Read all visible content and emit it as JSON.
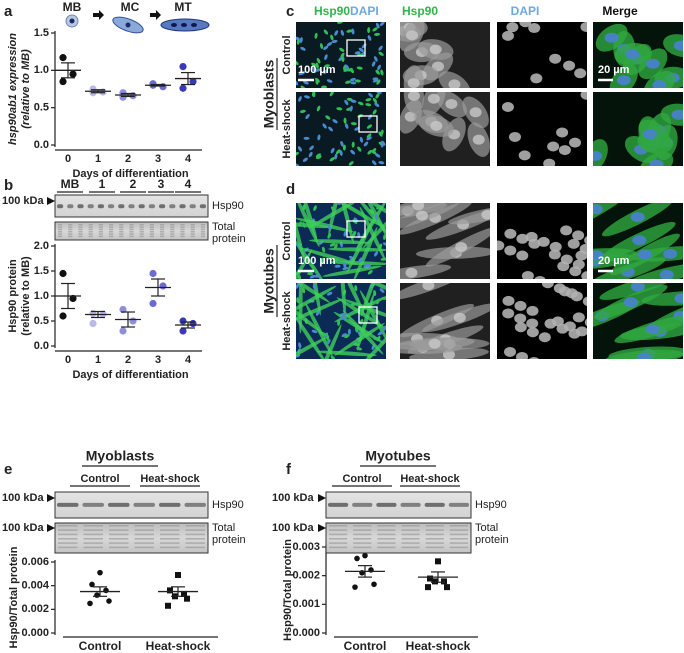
{
  "panel_letters": [
    "a",
    "b",
    "c",
    "d",
    "e",
    "f"
  ],
  "chart_data": [
    {
      "type": "dotplot",
      "stages": [
        "MB",
        "MC",
        "MT"
      ],
      "ylabel": [
        "hsp90ab1 expression",
        "(relative to MB)"
      ],
      "xlabel": "Days of differentiation",
      "categories": [
        "0",
        "1",
        "2",
        "3",
        "4"
      ],
      "colors": [
        "#111111",
        "#b9b9e9",
        "#8f8fdc",
        "#6b6bd2",
        "#3a3ab8"
      ],
      "markers": [
        "circle",
        "circle",
        "circle",
        "circle",
        "circle"
      ],
      "points": [
        [
          1.17,
          0.95,
          0.85
        ],
        [
          0.75,
          0.71,
          0.7
        ],
        [
          0.7,
          0.66,
          0.64
        ],
        [
          0.82,
          0.78,
          0.8
        ],
        [
          1.05,
          0.85,
          0.76
        ]
      ],
      "means": [
        1.0,
        0.72,
        0.67,
        0.8,
        0.89
      ],
      "errors": [
        0.1,
        0.02,
        0.02,
        0.01,
        0.08
      ],
      "ylim": [
        0,
        1.5
      ],
      "yticks": [
        {
          "value": 0,
          "label": "0.0"
        },
        {
          "value": 0.5,
          "label": "0.5"
        },
        {
          "value": 1,
          "label": "1.0"
        },
        {
          "value": 1.5,
          "label": "1.5"
        }
      ]
    },
    {
      "type": "dotplot",
      "blot": {
        "lanes": [
          "MB",
          "1",
          "2",
          "3",
          "4"
        ],
        "markers": [
          "100 kDa"
        ],
        "bands": [
          "Hsp90",
          "Total protein"
        ]
      },
      "ylabel": [
        "Hsp90 protein",
        "(relative to MB)"
      ],
      "xlabel": "Days of differentiation",
      "categories": [
        "0",
        "1",
        "2",
        "3",
        "4"
      ],
      "colors": [
        "#111111",
        "#b9b9e9",
        "#8f8fdc",
        "#6b6bd2",
        "#3a3ab8"
      ],
      "markers": [
        "circle",
        "circle",
        "circle",
        "circle",
        "circle"
      ],
      "points": [
        [
          1.45,
          0.95,
          0.6
        ],
        [
          0.65,
          0.64,
          0.45
        ],
        [
          0.73,
          0.5,
          0.3
        ],
        [
          1.45,
          1.2,
          0.85
        ],
        [
          0.5,
          0.45,
          0.3
        ]
      ],
      "means": [
        1.0,
        0.63,
        0.53,
        1.17,
        0.42
      ],
      "errors": [
        0.25,
        0.06,
        0.15,
        0.17,
        0.06
      ],
      "ylim": [
        0,
        2
      ],
      "yticks": [
        {
          "value": 0,
          "label": "0.0"
        },
        {
          "value": 0.5,
          "label": "0.5"
        },
        {
          "value": 1,
          "label": "1.0"
        },
        {
          "value": 1.5,
          "label": "1.5"
        },
        {
          "value": 2,
          "label": "2.0"
        }
      ]
    },
    {
      "type": "dotplot",
      "blot": {
        "title": "Myoblasts",
        "groups": [
          "Control",
          "Heat-shock"
        ],
        "markers": [
          "100 kDa",
          "100 kDa"
        ],
        "bands": [
          "Hsp90",
          "Total protein"
        ]
      },
      "ylabel": [
        "Hsp90/Total protein"
      ],
      "categories": [
        "Control",
        "Heat-shock"
      ],
      "colors": [
        "#111111",
        "#111111"
      ],
      "markers": [
        "circle",
        "square"
      ],
      "points": [
        [
          0.0051,
          0.0041,
          0.0036,
          0.0032,
          0.0027,
          0.0025
        ],
        [
          0.0049,
          0.0036,
          0.0033,
          0.0031,
          0.0029,
          0.0023
        ]
      ],
      "means": [
        0.0035,
        0.0035
      ],
      "errors": [
        0.0004,
        0.0004
      ],
      "ylim": [
        0,
        0.006
      ],
      "yticks": [
        {
          "value": 0,
          "label": "0.000"
        },
        {
          "value": 0.002,
          "label": "0.002"
        },
        {
          "value": 0.004,
          "label": "0.004"
        },
        {
          "value": 0.006,
          "label": "0.006"
        }
      ]
    },
    {
      "type": "dotplot",
      "blot": {
        "title": "Myotubes",
        "groups": [
          "Control",
          "Heat-shock"
        ],
        "markers": [
          "100 kDa",
          "100 kDa"
        ],
        "bands": [
          "Hsp90",
          "Total protein"
        ]
      },
      "ylabel": [
        "Hsp90/Total protein"
      ],
      "categories": [
        "Control",
        "Heat-shock"
      ],
      "colors": [
        "#111111",
        "#111111"
      ],
      "markers": [
        "circle",
        "square"
      ],
      "points": [
        [
          0.0027,
          0.0026,
          0.0022,
          0.0021,
          0.0017,
          0.0016
        ],
        [
          0.0025,
          0.0019,
          0.0018,
          0.0018,
          0.0016,
          0.0016
        ]
      ],
      "means": [
        0.00215,
        0.00195
      ],
      "errors": [
        0.0002,
        0.00018
      ],
      "ylim": [
        0,
        0.003
      ],
      "yticks": [
        {
          "value": 0,
          "label": "0.000"
        },
        {
          "value": 0.001,
          "label": "0.001"
        },
        {
          "value": 0.002,
          "label": "0.002"
        },
        {
          "value": 0.003,
          "label": "0.003"
        }
      ]
    }
  ],
  "microscopy": {
    "header": [
      "Hsp90",
      "DAPI",
      "Hsp90",
      "DAPI",
      "Merge"
    ],
    "rows": [
      {
        "cell_type": "Myoblasts",
        "conditions": [
          "Control",
          "Heat-shock"
        ],
        "scale_bars": [
          "100 µm",
          "20 µm"
        ]
      },
      {
        "cell_type": "Myotubes",
        "conditions": [
          "Control",
          "Heat-shock"
        ],
        "scale_bars": [
          "100 µm",
          "20 µm"
        ]
      }
    ]
  }
}
